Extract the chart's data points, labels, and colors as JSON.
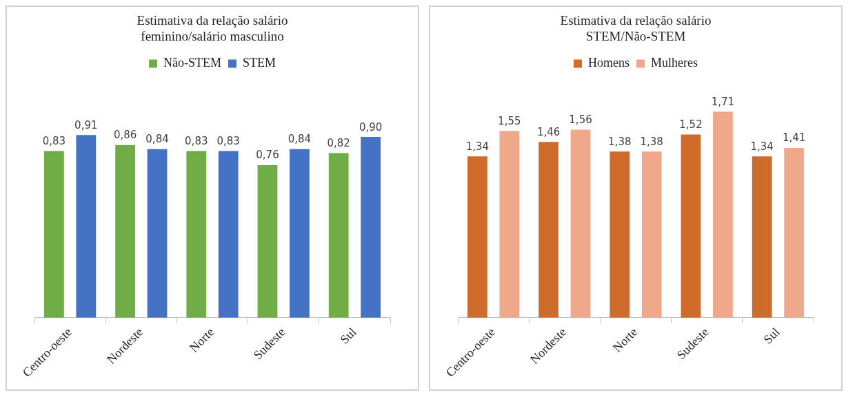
{
  "chart_data": [
    {
      "type": "bar",
      "title": "Estimativa da relação salário feminino/salário masculino",
      "categories": [
        "Centro-oeste",
        "Nordeste",
        "Norte",
        "Sudeste",
        "Sul"
      ],
      "legend": "top",
      "grid": false,
      "series": [
        {
          "name": "Não-STEM",
          "color": "#70ad47",
          "values": [
            0.83,
            0.86,
            0.83,
            0.76,
            0.82
          ],
          "value_labels": [
            "0,83",
            "0,86",
            "0,83",
            "0,76",
            "0,82"
          ]
        },
        {
          "name": "STEM",
          "color": "#4472c4",
          "values": [
            0.91,
            0.84,
            0.83,
            0.84,
            0.9
          ],
          "value_labels": [
            "0,91",
            "0,84",
            "0,83",
            "0,84",
            "0,90"
          ]
        }
      ]
    },
    {
      "type": "bar",
      "title": "Estimativa da relação salário STEM/Não-STEM",
      "categories": [
        "Centro-oeste",
        "Nordeste",
        "Norte",
        "Sudeste",
        "Sul"
      ],
      "legend": "top",
      "grid": false,
      "series": [
        {
          "name": "Homens",
          "color": "#d06c2b",
          "values": [
            1.34,
            1.46,
            1.38,
            1.52,
            1.34
          ],
          "value_labels": [
            "1,34",
            "1,46",
            "1,38",
            "1,52",
            "1,34"
          ]
        },
        {
          "name": "Mulheres",
          "color": "#f0a88a",
          "values": [
            1.55,
            1.56,
            1.38,
            1.71,
            1.41
          ],
          "value_labels": [
            "1,55",
            "1,56",
            "1,38",
            "1,71",
            "1,41"
          ]
        }
      ]
    }
  ]
}
